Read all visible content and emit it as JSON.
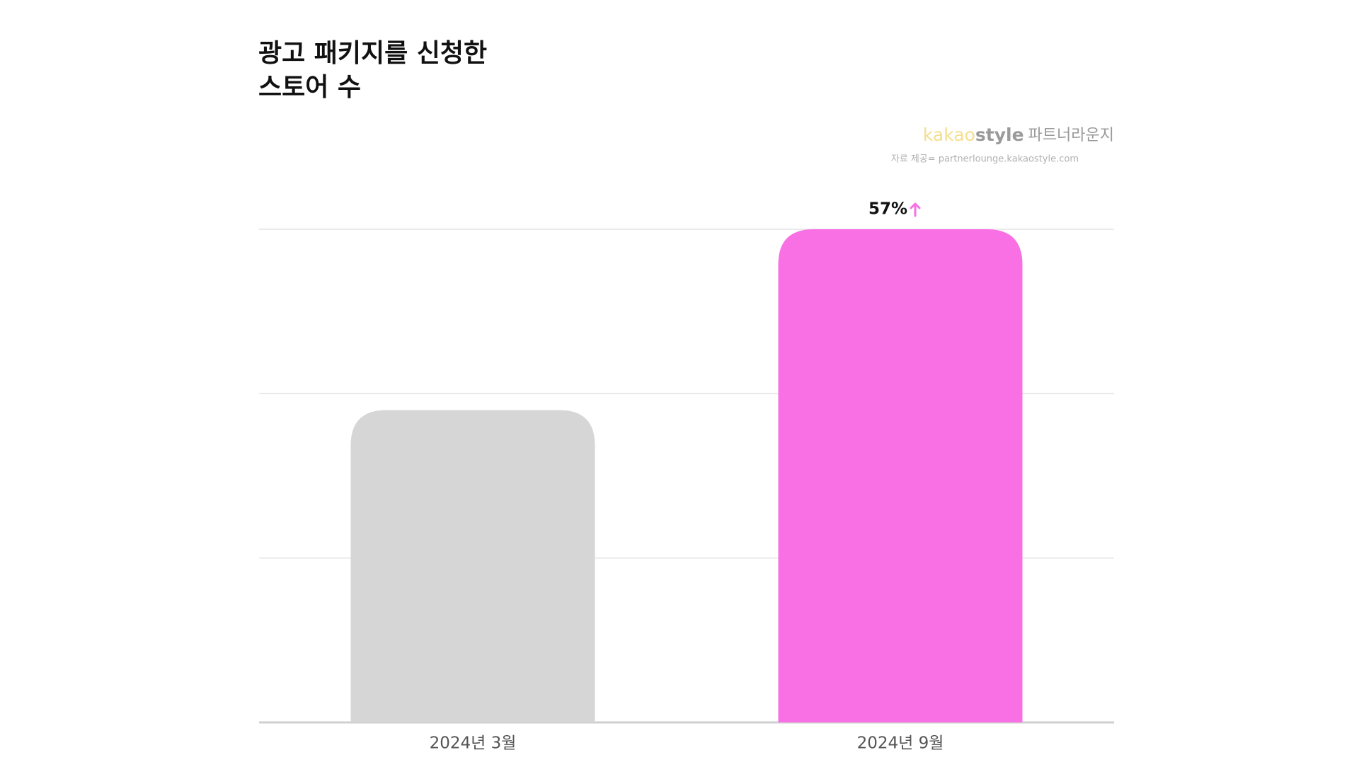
{
  "chart_data": {
    "type": "bar",
    "title": [
      "광고 패키지를 신청한",
      "스토어 수"
    ],
    "brand": {
      "part1": "kakao",
      "part2": "style",
      "name": "파트너라운지"
    },
    "source": "자료 제공= partnerlounge.kakaostyle.com",
    "categories": [
      "2024년 3월",
      "2024년 9월"
    ],
    "values": [
      1.9,
      3.0
    ],
    "colors": [
      "#d6d6d6",
      "#f870e3"
    ],
    "annotation": "57%",
    "ylim": [
      0,
      3
    ],
    "yticks": [
      0,
      1,
      2,
      3
    ],
    "grid": true
  }
}
